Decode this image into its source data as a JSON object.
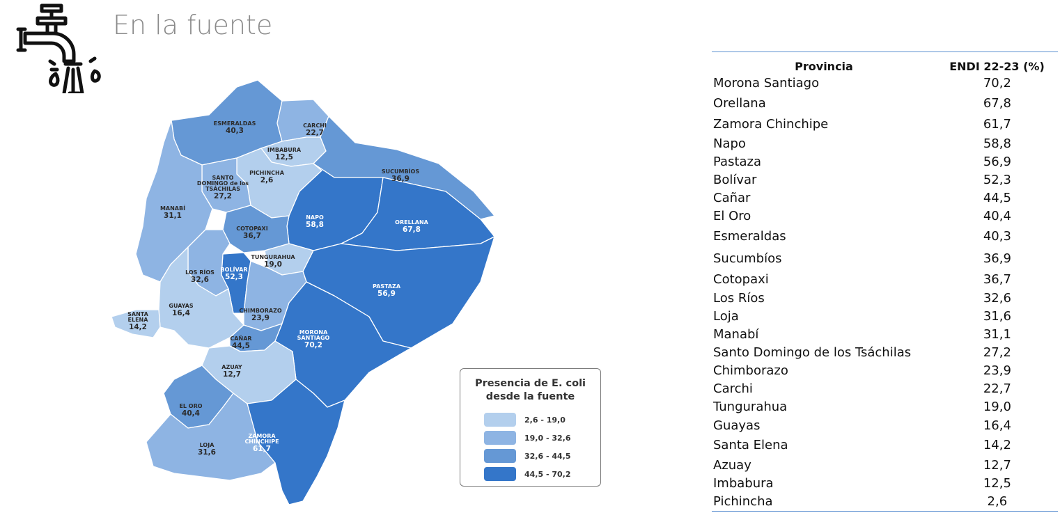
{
  "header": {
    "title": "En la fuente",
    "icon": "water-tap-icon"
  },
  "colors": {
    "class1": "#b3cfed",
    "class2": "#8eb4e3",
    "class3": "#6598d5",
    "class4": "#3476c9",
    "table_rule": "#5b8fd0"
  },
  "map": {
    "provinces": [
      {
        "key": "esmeraldas",
        "name": "ESMERALDAS",
        "value": "40,3",
        "class": 3
      },
      {
        "key": "carchi",
        "name": "CARCHI",
        "value": "22,7",
        "class": 2
      },
      {
        "key": "imbabura",
        "name": "IMBABURA",
        "value": "12,5",
        "class": 1
      },
      {
        "key": "sucumbios",
        "name": "SUCUMBÍOS",
        "value": "36,9",
        "class": 3
      },
      {
        "key": "pichincha",
        "name": "PICHINCHA",
        "value": "2,6",
        "class": 1
      },
      {
        "key": "santo_domingo",
        "name": "SANTO DOMINGO de los TSÁCHILAS",
        "name_line1": "SANTO",
        "name_line2": "DOMINGO de los",
        "name_line3": "TSÁCHILAS",
        "value": "27,2",
        "class": 2
      },
      {
        "key": "manabi",
        "name": "MANABÍ",
        "value": "31,1",
        "class": 2
      },
      {
        "key": "napo",
        "name": "NAPO",
        "value": "58,8",
        "class": 4
      },
      {
        "key": "orellana",
        "name": "ORELLANA",
        "value": "67,8",
        "class": 4
      },
      {
        "key": "cotopaxi",
        "name": "COTOPAXI",
        "value": "36,7",
        "class": 3
      },
      {
        "key": "tungurahua",
        "name": "TUNGURAHUA",
        "value": "19,0",
        "class": 1
      },
      {
        "key": "bolivar",
        "name": "BOLÍVAR",
        "value": "52,3",
        "class": 4
      },
      {
        "key": "los_rios",
        "name": "LOS RÍOS",
        "value": "32,6",
        "class": 2
      },
      {
        "key": "pastaza",
        "name": "PASTAZA",
        "value": "56,9",
        "class": 4
      },
      {
        "key": "chimborazo",
        "name": "CHIMBORAZO",
        "value": "23,9",
        "class": 2
      },
      {
        "key": "guayas",
        "name": "GUAYAS",
        "value": "16,4",
        "class": 1
      },
      {
        "key": "santa_elena",
        "name": "SANTA ELENA",
        "name_line1": "SANTA",
        "name_line2": "ELENA",
        "value": "14,2",
        "class": 1
      },
      {
        "key": "morona",
        "name": "MORONA SANTIAGO",
        "name_line1": "MORONA",
        "name_line2": "SANTIAGO",
        "value": "70,2",
        "class": 4
      },
      {
        "key": "canar",
        "name": "CAÑAR",
        "value": "44,5",
        "class": 3
      },
      {
        "key": "azuay",
        "name": "AZUAY",
        "value": "12,7",
        "class": 1
      },
      {
        "key": "el_oro",
        "name": "EL ORO",
        "value": "40,4",
        "class": 3
      },
      {
        "key": "zamora",
        "name": "ZAMORA CHINCHIPE",
        "name_line1": "ZAMORA",
        "name_line2": "CHINCHIPE",
        "value": "61,7",
        "class": 4
      },
      {
        "key": "loja",
        "name": "LOJA",
        "value": "31,6",
        "class": 2
      }
    ]
  },
  "legend": {
    "title_line1": "Presencia de E. coli",
    "title_line2": "desde la fuente",
    "items": [
      {
        "label": "2,6 - 19,0",
        "color": "#b3cfed"
      },
      {
        "label": "19,0 - 32,6",
        "color": "#8eb4e3"
      },
      {
        "label": "32,6 - 44,5",
        "color": "#6598d5"
      },
      {
        "label": "44,5 - 70,2",
        "color": "#3476c9"
      }
    ]
  },
  "table": {
    "headers": [
      "Provincia",
      "ENDI 22-23 (%)"
    ],
    "rows": [
      [
        "Morona Santiago",
        "70,2"
      ],
      [
        "Orellana",
        "67,8"
      ],
      [
        "Zamora Chinchipe",
        "61,7"
      ],
      [
        "Napo",
        "58,8"
      ],
      [
        "Pastaza",
        "56,9"
      ],
      [
        "Bolívar",
        "52,3"
      ],
      [
        "Cañar",
        "44,5"
      ],
      [
        "El Oro",
        "40,4"
      ],
      [
        "Esmeraldas",
        "40,3"
      ],
      [
        "Sucumbíos",
        "36,9"
      ],
      [
        "Cotopaxi",
        "36,7"
      ],
      [
        "Los Ríos",
        "32,6"
      ],
      [
        "Loja",
        "31,6"
      ],
      [
        "Manabí",
        "31,1"
      ],
      [
        "Santo Domingo de los Tsáchilas",
        "27,2"
      ],
      [
        "Chimborazo",
        "23,9"
      ],
      [
        "Carchi",
        "22,7"
      ],
      [
        "Tungurahua",
        "19,0"
      ],
      [
        "Guayas",
        "16,4"
      ],
      [
        "Santa Elena",
        "14,2"
      ],
      [
        "Azuay",
        "12,7"
      ],
      [
        "Imbabura",
        "12,5"
      ],
      [
        "Pichincha",
        "2,6"
      ]
    ]
  }
}
